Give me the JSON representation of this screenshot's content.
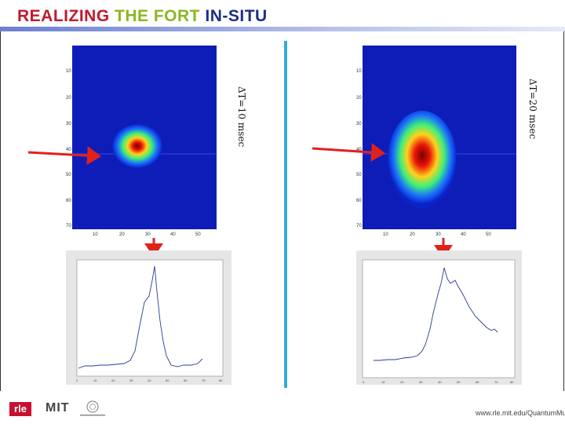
{
  "title": {
    "part1": "REALIZING",
    "part2": "THE FORT",
    "part3": "IN-SITU"
  },
  "left_panel": {
    "dt_label": "ΔT=10 msec",
    "y_ticks": [
      "10",
      "20",
      "30",
      "40",
      "50",
      "60",
      "70"
    ],
    "x_ticks": [
      "10",
      "20",
      "30",
      "40",
      "50"
    ]
  },
  "right_panel": {
    "dt_label": "ΔT=20 msec",
    "y_ticks": [
      "10",
      "20",
      "30",
      "40",
      "50",
      "60",
      "70"
    ],
    "x_ticks": [
      "10",
      "20",
      "30",
      "40",
      "50"
    ]
  },
  "profile_axis": {
    "x_ticks": [
      "0",
      "10",
      "20",
      "30",
      "40",
      "50",
      "60",
      "70",
      "80"
    ]
  },
  "footer": {
    "rle_logo": "rle",
    "mit_logo": "MIT",
    "url": "www.rle.mit.edu/QuantumMuri"
  },
  "colors": {
    "arrow": "#e0221b",
    "divider": "#33aadc",
    "title_red": "#c0192c",
    "title_green": "#8ab820",
    "title_blue": "#1b2f86"
  }
}
